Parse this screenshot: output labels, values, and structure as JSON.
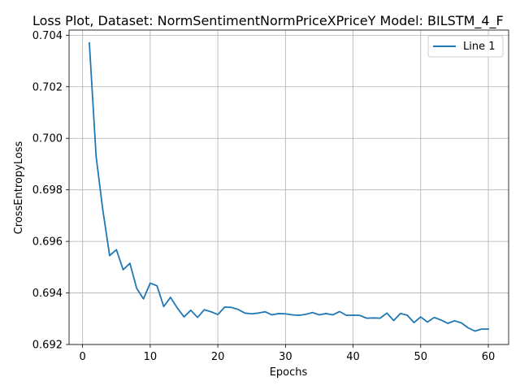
{
  "chart_data": {
    "type": "line",
    "title": "Loss Plot, Dataset: NormSentimentNormPriceXPriceY Model: BILSTM_4_F",
    "xlabel": "Epochs",
    "ylabel": "CrossEntropyLoss",
    "xlim": [
      -2,
      63
    ],
    "ylim": [
      0.692,
      0.7042
    ],
    "xticks": [
      0,
      10,
      20,
      30,
      40,
      50,
      60
    ],
    "yticks": [
      0.692,
      0.694,
      0.696,
      0.698,
      0.7,
      0.702,
      0.704
    ],
    "ytick_labels": [
      "0.692",
      "0.694",
      "0.696",
      "0.698",
      "0.700",
      "0.702",
      "0.704"
    ],
    "grid": true,
    "legend_position": "top-right",
    "series": [
      {
        "name": "Line 1",
        "color": "#1f77b4",
        "x": [
          1,
          2,
          3,
          4,
          5,
          6,
          7,
          8,
          9,
          10,
          11,
          12,
          13,
          14,
          15,
          16,
          17,
          18,
          19,
          20,
          21,
          22,
          23,
          24,
          25,
          26,
          27,
          28,
          29,
          30,
          31,
          32,
          33,
          34,
          35,
          36,
          37,
          38,
          39,
          40,
          41,
          42,
          43,
          44,
          45,
          46,
          47,
          48,
          49,
          50,
          51,
          52,
          53,
          54,
          55,
          56,
          57,
          58,
          59,
          60
        ],
        "y": [
          0.7037,
          0.6993,
          0.6972,
          0.69545,
          0.69568,
          0.6949,
          0.69515,
          0.69418,
          0.69377,
          0.69438,
          0.69428,
          0.69347,
          0.69383,
          0.69342,
          0.69307,
          0.69333,
          0.69305,
          0.69335,
          0.69327,
          0.69316,
          0.69345,
          0.69344,
          0.69336,
          0.69322,
          0.69319,
          0.69322,
          0.69327,
          0.69315,
          0.6932,
          0.69319,
          0.69315,
          0.69313,
          0.69317,
          0.69324,
          0.69315,
          0.6932,
          0.69315,
          0.69328,
          0.69313,
          0.69314,
          0.69313,
          0.69302,
          0.69303,
          0.69302,
          0.69322,
          0.69293,
          0.6932,
          0.69314,
          0.69285,
          0.69307,
          0.69287,
          0.69305,
          0.69295,
          0.69282,
          0.69292,
          0.69284,
          0.69265,
          0.69252,
          0.6926,
          0.6926
        ]
      }
    ]
  }
}
